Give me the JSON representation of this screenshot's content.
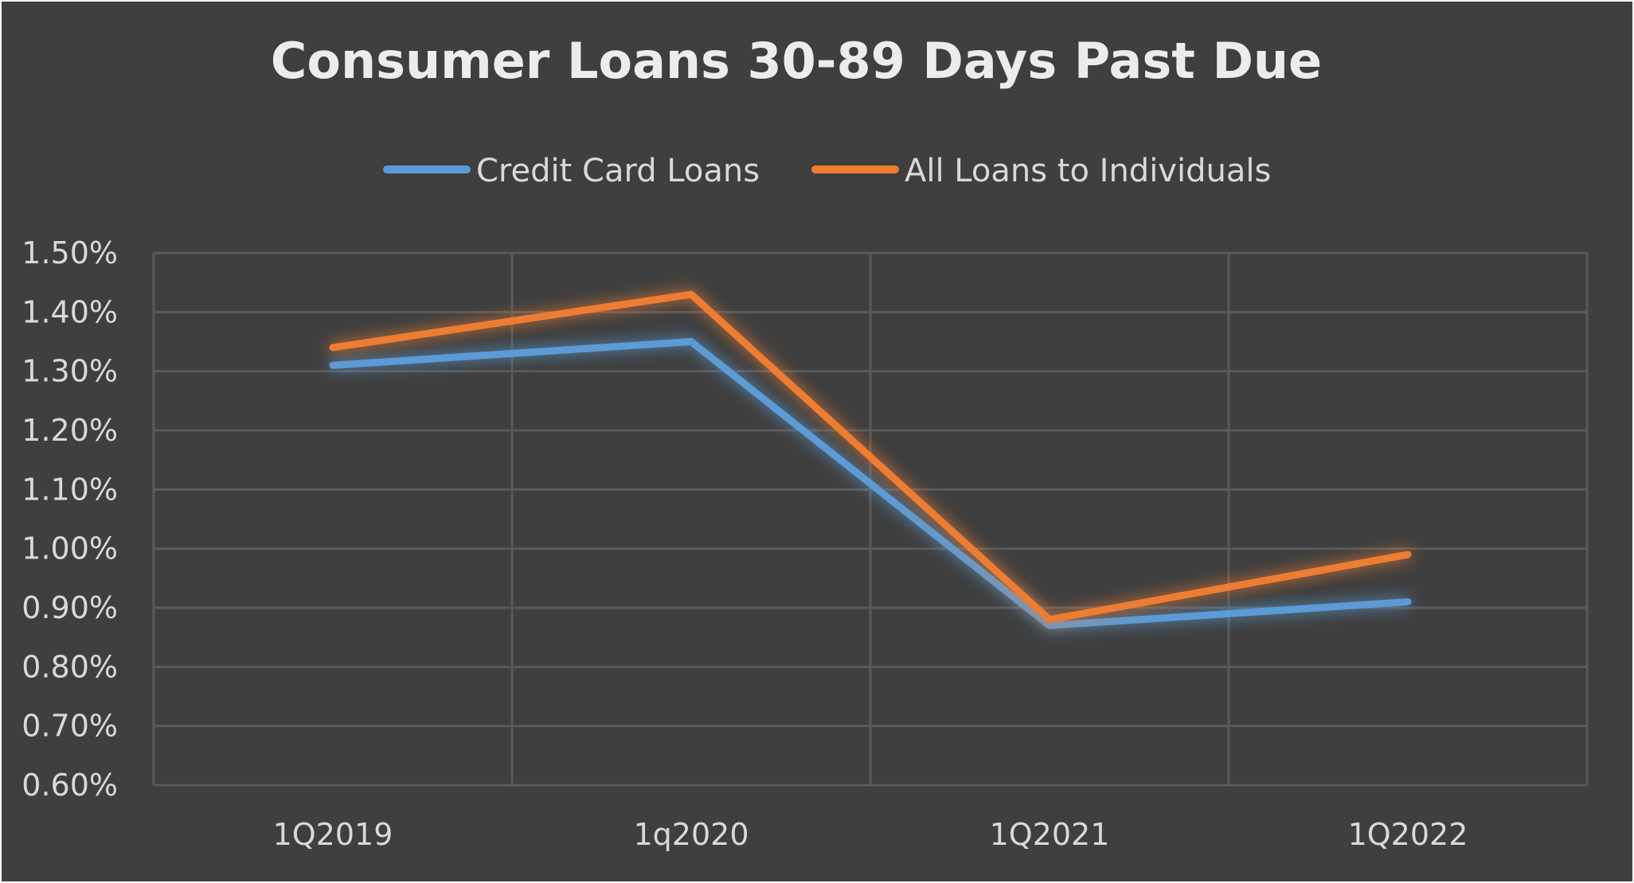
{
  "chart_data": {
    "type": "line",
    "title": "Consumer Loans 30-89 Days Past Due",
    "categories": [
      "1Q2019",
      "1q2020",
      "1Q2021",
      "1Q2022"
    ],
    "series": [
      {
        "name": "Credit Card Loans",
        "color": "#5b9bd5",
        "values": [
          1.31,
          1.35,
          0.87,
          0.91
        ]
      },
      {
        "name": "All Loans to Individuals",
        "color": "#ed7d31",
        "values": [
          1.34,
          1.43,
          0.88,
          0.99
        ]
      }
    ],
    "yticks": [
      "1.50%",
      "1.40%",
      "1.30%",
      "1.20%",
      "1.10%",
      "1.00%",
      "0.90%",
      "0.80%",
      "0.70%",
      "0.60%"
    ],
    "ylim": [
      0.6,
      1.5
    ],
    "xlabel": "",
    "ylabel": "",
    "grid": true,
    "legend_position": "top"
  },
  "colors": {
    "background": "#3f3f3f",
    "gridline": "#5a5a5a",
    "text": "#d9d9d9",
    "title": "#ececec"
  }
}
